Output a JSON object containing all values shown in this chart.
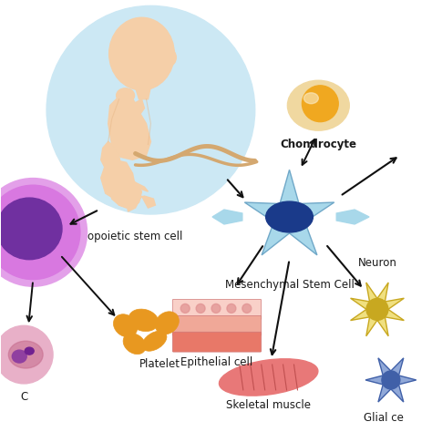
{
  "background_color": "#ffffff",
  "labels": {
    "msc": "Mesenchymal Stem Cell",
    "chondrocyte": "Chondrocyte",
    "epithelial": "Epithelial cell",
    "skeletal": "Skeletal muscle",
    "neuron": "Neuron",
    "glial": "Glial ce",
    "hematopoietic": "opoietic stem cell",
    "platelet": "Platelet",
    "rbc": "C"
  },
  "colors": {
    "fetus_circle": "#cce8f4",
    "fetus_skin": "#f5cfa8",
    "fetus_outline": "#e8b888",
    "msc_body": "#a8d8ea",
    "msc_nucleus": "#1a3a8a",
    "chondrocyte_outer": "#f0d8a0",
    "chondrocyte_inner": "#f0a820",
    "epithelial_light": "#f9d0c8",
    "epithelial_mid": "#f0a898",
    "epithelial_dark": "#e88878",
    "skeletal_color": "#e87878",
    "neuron_body": "#f0e080",
    "neuron_dark": "#c8a820",
    "glial_body": "#90a8d8",
    "glial_dark": "#4060a8",
    "hematopoietic_outer": "#c060c8",
    "hematopoietic_inner": "#7030a0",
    "rbc_outer": "#e8b0c8",
    "rbc_inner": "#c87090",
    "platelet_color": "#e89820",
    "platelet_edge": "#c87010",
    "arrow_color": "#101010",
    "text_color": "#1a1a1a"
  },
  "font_size": 8.5
}
